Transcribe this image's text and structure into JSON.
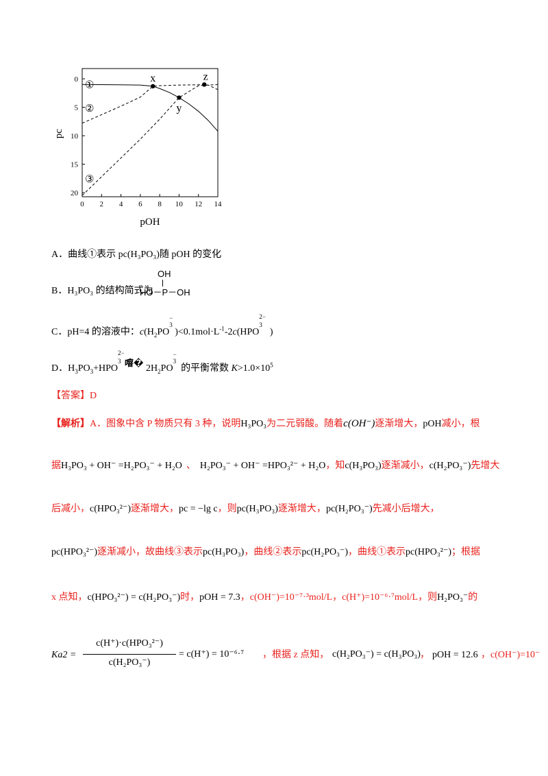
{
  "chart_data": {
    "type": "line",
    "xlabel": "pOH",
    "ylabel": "pc",
    "xlim": [
      0,
      14
    ],
    "ylim": [
      20,
      0
    ],
    "x_ticks": [
      "0",
      "2",
      "4",
      "6",
      "8",
      "10",
      "12",
      "14"
    ],
    "y_ticks": [
      "0",
      "5",
      "10",
      "15",
      "20"
    ],
    "series": [
      {
        "name": "①",
        "style": "solid",
        "x": [
          0,
          2,
          4,
          6,
          7.3,
          8,
          9,
          10,
          11,
          12,
          13,
          14
        ],
        "y": [
          1.0,
          1.02,
          1.05,
          1.1,
          1.3,
          1.7,
          2.4,
          3.3,
          4.4,
          5.7,
          7.3,
          9.2
        ]
      },
      {
        "name": "②",
        "style": "dashed",
        "x": [
          0,
          2,
          4,
          6,
          7.3,
          8,
          10,
          12,
          12.6,
          13,
          14
        ],
        "y": [
          7.8,
          6.3,
          4.8,
          3.2,
          1.3,
          1.2,
          1.1,
          1.05,
          1.0,
          1.1,
          1.9
        ]
      },
      {
        "name": "③",
        "style": "dashed",
        "x": [
          0,
          2,
          4,
          6,
          8,
          10,
          12,
          14
        ],
        "y": [
          20.5,
          17.2,
          13.9,
          10.6,
          7.1,
          3.3,
          1.2,
          1.0
        ]
      }
    ],
    "points": [
      {
        "label": "x",
        "x": 7.3,
        "y": 1.3
      },
      {
        "label": "y",
        "x": 10,
        "y": 3.3
      },
      {
        "label": "z",
        "x": 12.6,
        "y": 1.0
      }
    ]
  },
  "options": {
    "A": "A．曲线①表示 pc(H₃PO₃)随 pOH 的变化",
    "B_prefix": "B．H₃PO₃ 的结构简式为",
    "B_struct": {
      "oh_top": "OH",
      "main": "HO－P－OH"
    },
    "C": {
      "prefix": "C．pH=4 的溶液中：",
      "c1": "c",
      "s1": "(H",
      "sub1": "2",
      "s2": "PO",
      "sub2": "3",
      "sup2": "−",
      "s3": ")<0.1mol·L",
      "sup3": "-1",
      "s4": "-2",
      "c2": "c",
      "s5": "(HPO",
      "sub5": "3",
      "sup5": "2−",
      "s6": " )"
    },
    "D": {
      "prefix": "D．H",
      "sub1": "3",
      "s1": "PO",
      "sub2": "3",
      "s2": "+HPO",
      "sup3": "2−",
      "sub3": "3",
      "garble": "噾�",
      "s4": " 2H",
      "sub4": "2",
      "s5": "PO",
      "sup5": "−",
      "sub5": "3",
      "s6": " 的平衡常数 ",
      "k": "K",
      "s7": ">1.0×10",
      "sup7": "5"
    }
  },
  "answer": "【答案】D",
  "analysis": {
    "tag": "【解析】",
    "l1a": "A．图象中含 P 物质只有 3 种，说明",
    "l1b": "H₃PO₃",
    "l1c": "为二元弱酸。随着",
    "l1d": "c(OH⁻)",
    "l1e": "逐渐增大，",
    "l1f": "pOH",
    "l1g": "减小，根",
    "l2a": "据",
    "l2b": "H₃PO₃ + OH⁻ =H₂PO₃⁻ + H₂O",
    "l2c": "、",
    "l2d": "H₂PO₃⁻ + OH⁻ =HPO₃²⁻ + H₂O",
    "l2e": "，知",
    "l2f": "c(H₃PO₃)",
    "l2g": "逐渐减小，",
    "l2h": "c(H₂PO₃⁻)",
    "l2i": "先增大",
    "l3a": "后减小，",
    "l3b": "c(HPO₃²⁻)",
    "l3c": "逐渐增大，",
    "l3d": "pc = −lg c",
    "l3e": "，则",
    "l3f": "pc(H₃PO₃)",
    "l3g": "逐渐增大，",
    "l3h": "pc(H₂PO₃⁻)",
    "l3i": "先减小后增大，",
    "l4a": "pc(HPO₃²⁻)",
    "l4b": "逐渐减小，故曲线③表示",
    "l4c": "pc(H₃PO₃)",
    "l4d": "，曲线②表示",
    "l4e": "pc(H₂PO₃⁻)",
    "l4f": "，曲线①表示",
    "l4g": "pc(HPO₃²⁻)",
    "l4h": "；根据",
    "l5a": "x 点知，",
    "l5b": "c(HPO₃²⁻) = c(H₂PO₃⁻)",
    "l5c": "时，",
    "l5d": "pOH = 7.3",
    "l5e": "，c(OH⁻)=10⁻⁷·³mol/L，c(H⁺)=10⁻⁶·⁷mol/L，则",
    "l5f": "H₂PO₃⁻",
    "l5g": "的",
    "l6_lhs": "Ka2 =",
    "l6_num": "c(H⁺)·c(HPO₃²⁻)",
    "l6_den": "c(H₂PO₃⁻)",
    "l6_rhs": "= c(H⁺) = 10⁻⁶·⁷",
    "l6b": "，根据 z 点知，",
    "l6c": "c(H₂PO₃⁻) = c(H₃PO₃)",
    "l6d": "，",
    "l6e": "pOH = 12.6",
    "l6f": "，c(OH⁻)=10⁻"
  }
}
